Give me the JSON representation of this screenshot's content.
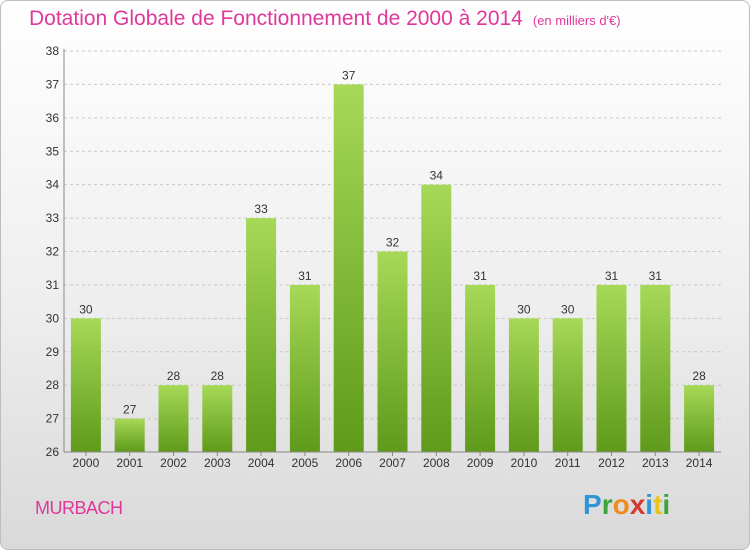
{
  "title": "Dotation Globale de Fonctionnement de 2000 à 2014",
  "subtitle": "(en milliers d'€)",
  "commune": "MURBACH",
  "logo": {
    "letters": [
      "P",
      "r",
      "o",
      "x",
      "i",
      "t",
      "i"
    ],
    "colors": [
      "#2f95d6",
      "#3ba53b",
      "#f08a1c",
      "#d63a2f",
      "#2f95d6",
      "#e8c31c",
      "#3ba53b"
    ]
  },
  "colors": {
    "bar_top": "#a6d957",
    "bar_bottom": "#5f9a1a",
    "title": "#e0389a"
  },
  "chart_data": {
    "type": "bar",
    "title": "Dotation Globale de Fonctionnement de 2000 à 2014",
    "unit": "(en milliers d'€)",
    "xlabel": "",
    "ylabel": "",
    "categories": [
      "2000",
      "2001",
      "2002",
      "2003",
      "2004",
      "2005",
      "2006",
      "2007",
      "2008",
      "2009",
      "2010",
      "2011",
      "2012",
      "2013",
      "2014"
    ],
    "values": [
      30,
      27,
      28,
      28,
      33,
      31,
      37,
      32,
      34,
      31,
      30,
      30,
      31,
      31,
      28
    ],
    "ylim": [
      26,
      38
    ],
    "yticks": [
      26,
      27,
      28,
      29,
      30,
      31,
      32,
      33,
      34,
      35,
      36,
      37,
      38
    ],
    "grid": "dashed horizontal"
  }
}
